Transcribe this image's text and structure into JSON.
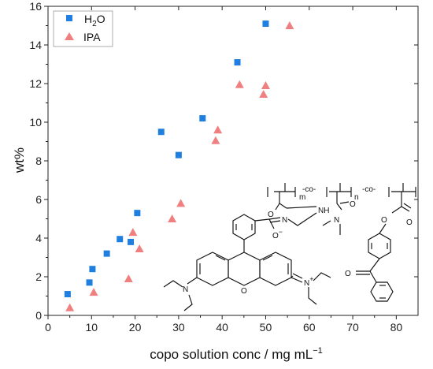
{
  "chart_data": {
    "type": "scatter",
    "xlabel": "copo solution conc / mg mL",
    "xlabel_superscript": "−1",
    "ylabel": "wt%",
    "xlim": [
      0,
      85
    ],
    "ylim": [
      0,
      16
    ],
    "xticks": [
      "0",
      "10",
      "20",
      "30",
      "40",
      "50",
      "60",
      "70",
      "80"
    ],
    "yticks": [
      "0",
      "2",
      "4",
      "6",
      "8",
      "10",
      "12",
      "14",
      "16"
    ],
    "legend_position": "top-left",
    "series": [
      {
        "name": "H2O",
        "legend_main": "H",
        "legend_sub": "2",
        "legend_end": "O",
        "marker": "square",
        "color": "#1f7fe0",
        "points": [
          [
            4.5,
            1.1
          ],
          [
            9.5,
            1.7
          ],
          [
            10.2,
            2.4
          ],
          [
            13.5,
            3.2
          ],
          [
            16.5,
            3.95
          ],
          [
            19,
            3.8
          ],
          [
            20.5,
            5.3
          ],
          [
            26,
            9.5
          ],
          [
            30,
            8.3
          ],
          [
            35.5,
            10.2
          ],
          [
            43.5,
            13.1
          ],
          [
            50,
            15.1
          ]
        ]
      },
      {
        "name": "IPA",
        "legend_main": "IPA",
        "marker": "triangle",
        "color": "#f08080",
        "points": [
          [
            5,
            0.4
          ],
          [
            10.5,
            1.2
          ],
          [
            18.5,
            1.9
          ],
          [
            19.5,
            4.3
          ],
          [
            21,
            3.45
          ],
          [
            28.5,
            5.0
          ],
          [
            30.5,
            5.8
          ],
          [
            38.5,
            9.05
          ],
          [
            39,
            9.6
          ],
          [
            44,
            11.95
          ],
          [
            49.5,
            11.45
          ],
          [
            50,
            11.9
          ],
          [
            55.5,
            15.0
          ]
        ]
      }
    ],
    "structure_labels": {
      "m": "m",
      "n": "n",
      "co": "-co-",
      "NH": "NH",
      "N": "N",
      "O": "O",
      "O_minus": "O",
      "minus": "−",
      "N_plus": "N",
      "plus": "+"
    }
  }
}
